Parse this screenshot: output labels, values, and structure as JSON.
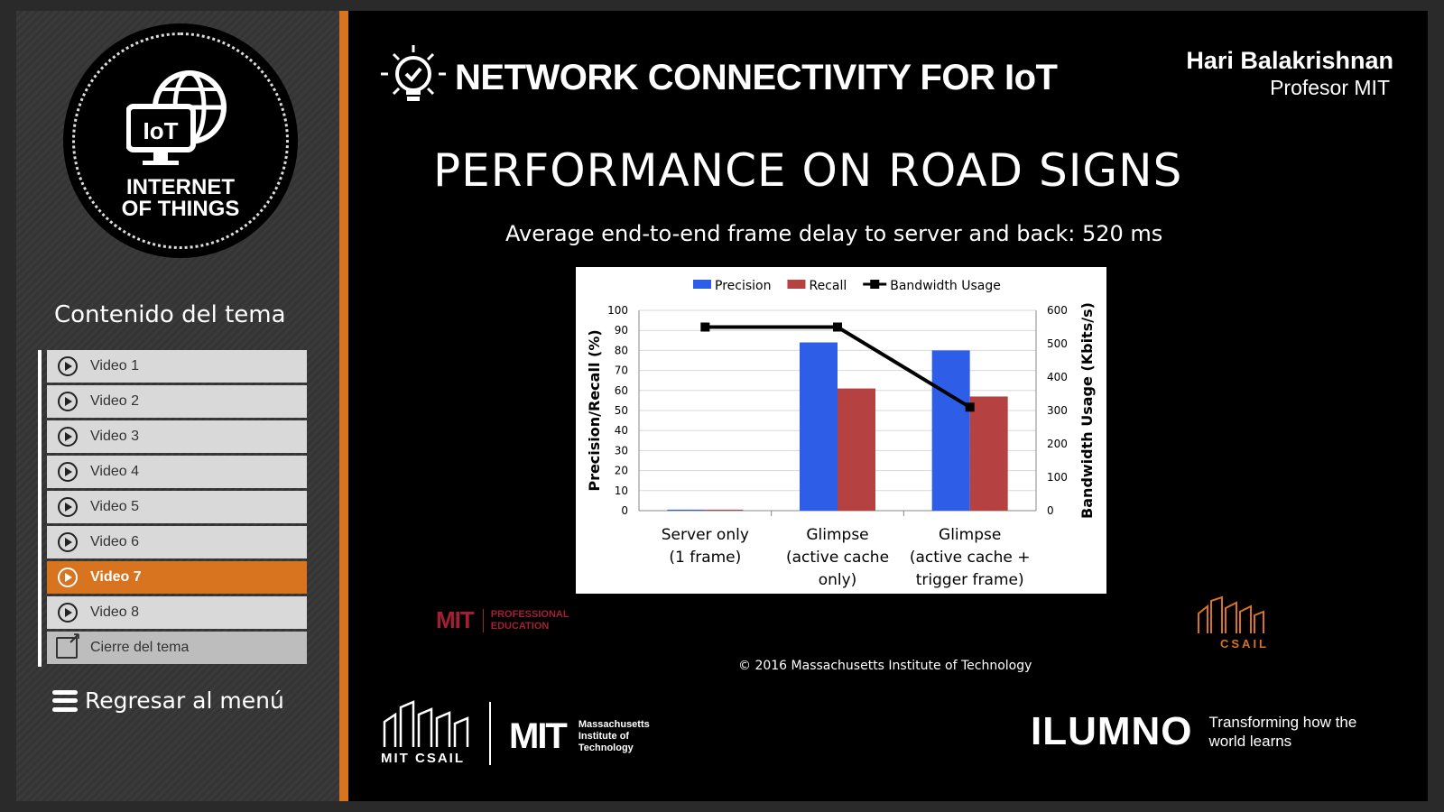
{
  "sidebar": {
    "logo_badge": "IoT",
    "logo_line1": "INTERNET",
    "logo_line2": "OF THINGS",
    "topic_title": "Contenido del tema",
    "videos": [
      {
        "label": "Video 1",
        "active": false
      },
      {
        "label": "Video 2",
        "active": false
      },
      {
        "label": "Video 3",
        "active": false
      },
      {
        "label": "Video 4",
        "active": false
      },
      {
        "label": "Video 5",
        "active": false
      },
      {
        "label": "Video 6",
        "active": false
      },
      {
        "label": "Video 7",
        "active": true
      },
      {
        "label": "Video 8",
        "active": false
      }
    ],
    "close_label": "Cierre del tema",
    "back_label": "Regresar al menú",
    "accent_color": "#d8731f"
  },
  "header": {
    "course_title": "NETWORK CONNECTIVITY FOR IoT",
    "presenter_name": "Hari Balakrishnan",
    "presenter_role": "Profesor MIT"
  },
  "slide": {
    "title": "PERFORMANCE ON ROAD SIGNS",
    "subtitle": "Average end-to-end frame delay to server and back: 520 ms",
    "copyright": "© 2016 Massachusetts Institute of Technology"
  },
  "chart_data": {
    "type": "bar",
    "categories": [
      [
        "Server only",
        "(1 frame)"
      ],
      [
        "Glimpse",
        "(active cache",
        "only)"
      ],
      [
        "Glimpse",
        "(active cache +",
        "trigger frame)"
      ]
    ],
    "series": [
      {
        "name": "Precision",
        "type": "bar",
        "axis": "left",
        "color": "#2e5ee8",
        "values": [
          0.5,
          84,
          80
        ]
      },
      {
        "name": "Recall",
        "type": "bar",
        "axis": "left",
        "color": "#b54140",
        "values": [
          0.5,
          61,
          57
        ]
      },
      {
        "name": "Bandwidth Usage",
        "type": "line",
        "axis": "right",
        "color": "#000000",
        "values": [
          550,
          550,
          310
        ]
      }
    ],
    "ylabel": "Precision/Recall (%)",
    "y2label": "Bandwidth Usage (Kbits/s)",
    "ylim": [
      0,
      100
    ],
    "y2lim": [
      0,
      600
    ],
    "yticks": [
      "0",
      "10",
      "20",
      "30",
      "40",
      "50",
      "60",
      "70",
      "80",
      "90",
      "100"
    ],
    "y2ticks": [
      "0",
      "100",
      "200",
      "300",
      "400",
      "500",
      "600"
    ],
    "grid": true,
    "legend": "top"
  },
  "logos": {
    "mit_mark": "MIT",
    "pe_text": "PROFESSIONAL EDUCATION",
    "csail_right": "CSAIL",
    "mit_csail": "MIT CSAIL",
    "mit_name": "Massachusetts Institute of Technology",
    "ilumno": "ILUMNO",
    "ilumno_tag": "Transforming how the world learns"
  }
}
